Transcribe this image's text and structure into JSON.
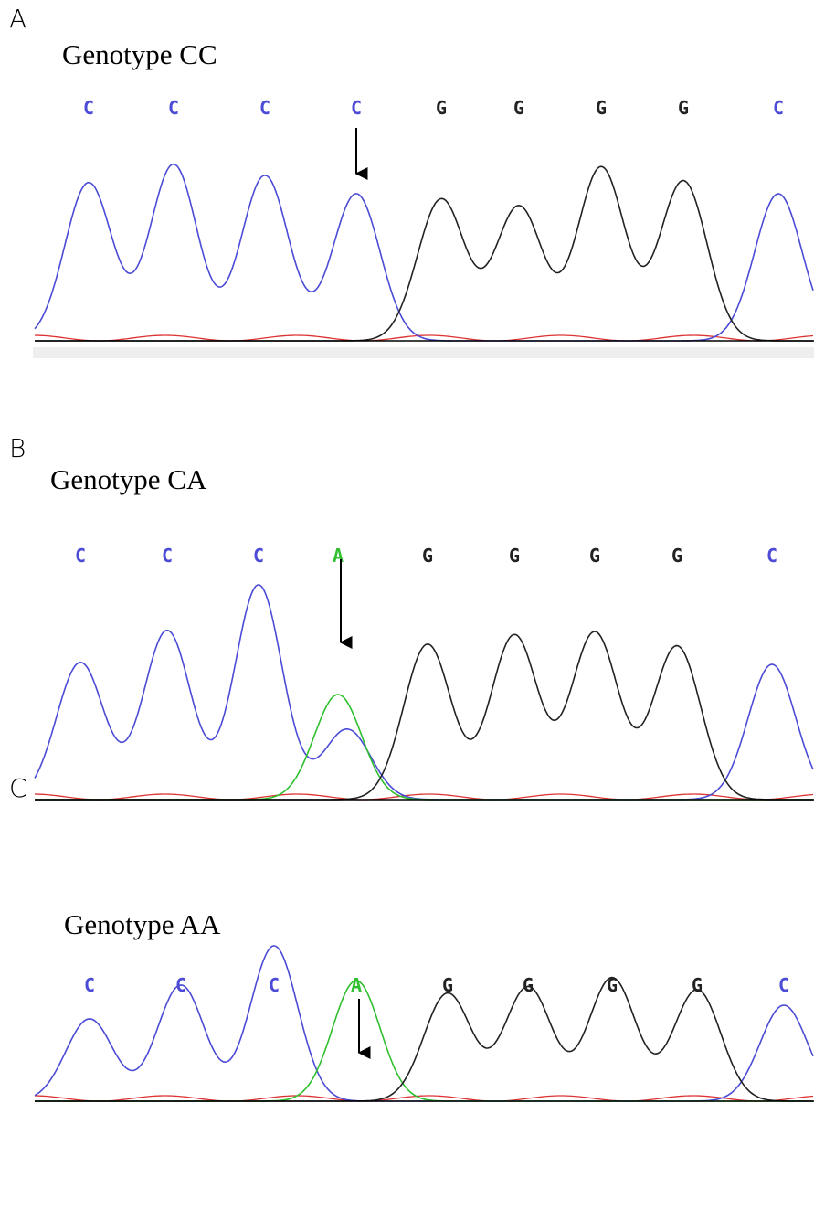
{
  "panels": [
    {
      "letter": "A",
      "title": "Genotype CC",
      "bases": [
        {
          "letter": "C",
          "color": "#4b4bd6"
        },
        {
          "letter": "C",
          "color": "#4b4bd6"
        },
        {
          "letter": "C",
          "color": "#4b4bd6"
        },
        {
          "letter": "C",
          "color": "#4b4bd6"
        },
        {
          "letter": "G",
          "color": "#222222"
        },
        {
          "letter": "G",
          "color": "#222222"
        },
        {
          "letter": "G",
          "color": "#222222"
        },
        {
          "letter": "G",
          "color": "#222222"
        },
        {
          "letter": "C",
          "color": "#4b4bd6"
        }
      ]
    },
    {
      "letter": "B",
      "title": "Genotype CA",
      "bases": [
        {
          "letter": "C",
          "color": "#4b4bd6"
        },
        {
          "letter": "C",
          "color": "#4b4bd6"
        },
        {
          "letter": "C",
          "color": "#4b4bd6"
        },
        {
          "letter": "A",
          "color": "#2fbf2f"
        },
        {
          "letter": "G",
          "color": "#222222"
        },
        {
          "letter": "G",
          "color": "#222222"
        },
        {
          "letter": "G",
          "color": "#222222"
        },
        {
          "letter": "G",
          "color": "#222222"
        },
        {
          "letter": "C",
          "color": "#4b4bd6"
        }
      ]
    },
    {
      "letter": "C",
      "title": "Genotype AA",
      "bases": [
        {
          "letter": "C",
          "color": "#4b4bd6"
        },
        {
          "letter": "C",
          "color": "#4b4bd6"
        },
        {
          "letter": "C",
          "color": "#4b4bd6"
        },
        {
          "letter": "A",
          "color": "#2fbf2f"
        },
        {
          "letter": "G",
          "color": "#222222"
        },
        {
          "letter": "G",
          "color": "#222222"
        },
        {
          "letter": "G",
          "color": "#222222"
        },
        {
          "letter": "G",
          "color": "#222222"
        },
        {
          "letter": "C",
          "color": "#4b4bd6"
        }
      ]
    }
  ]
}
